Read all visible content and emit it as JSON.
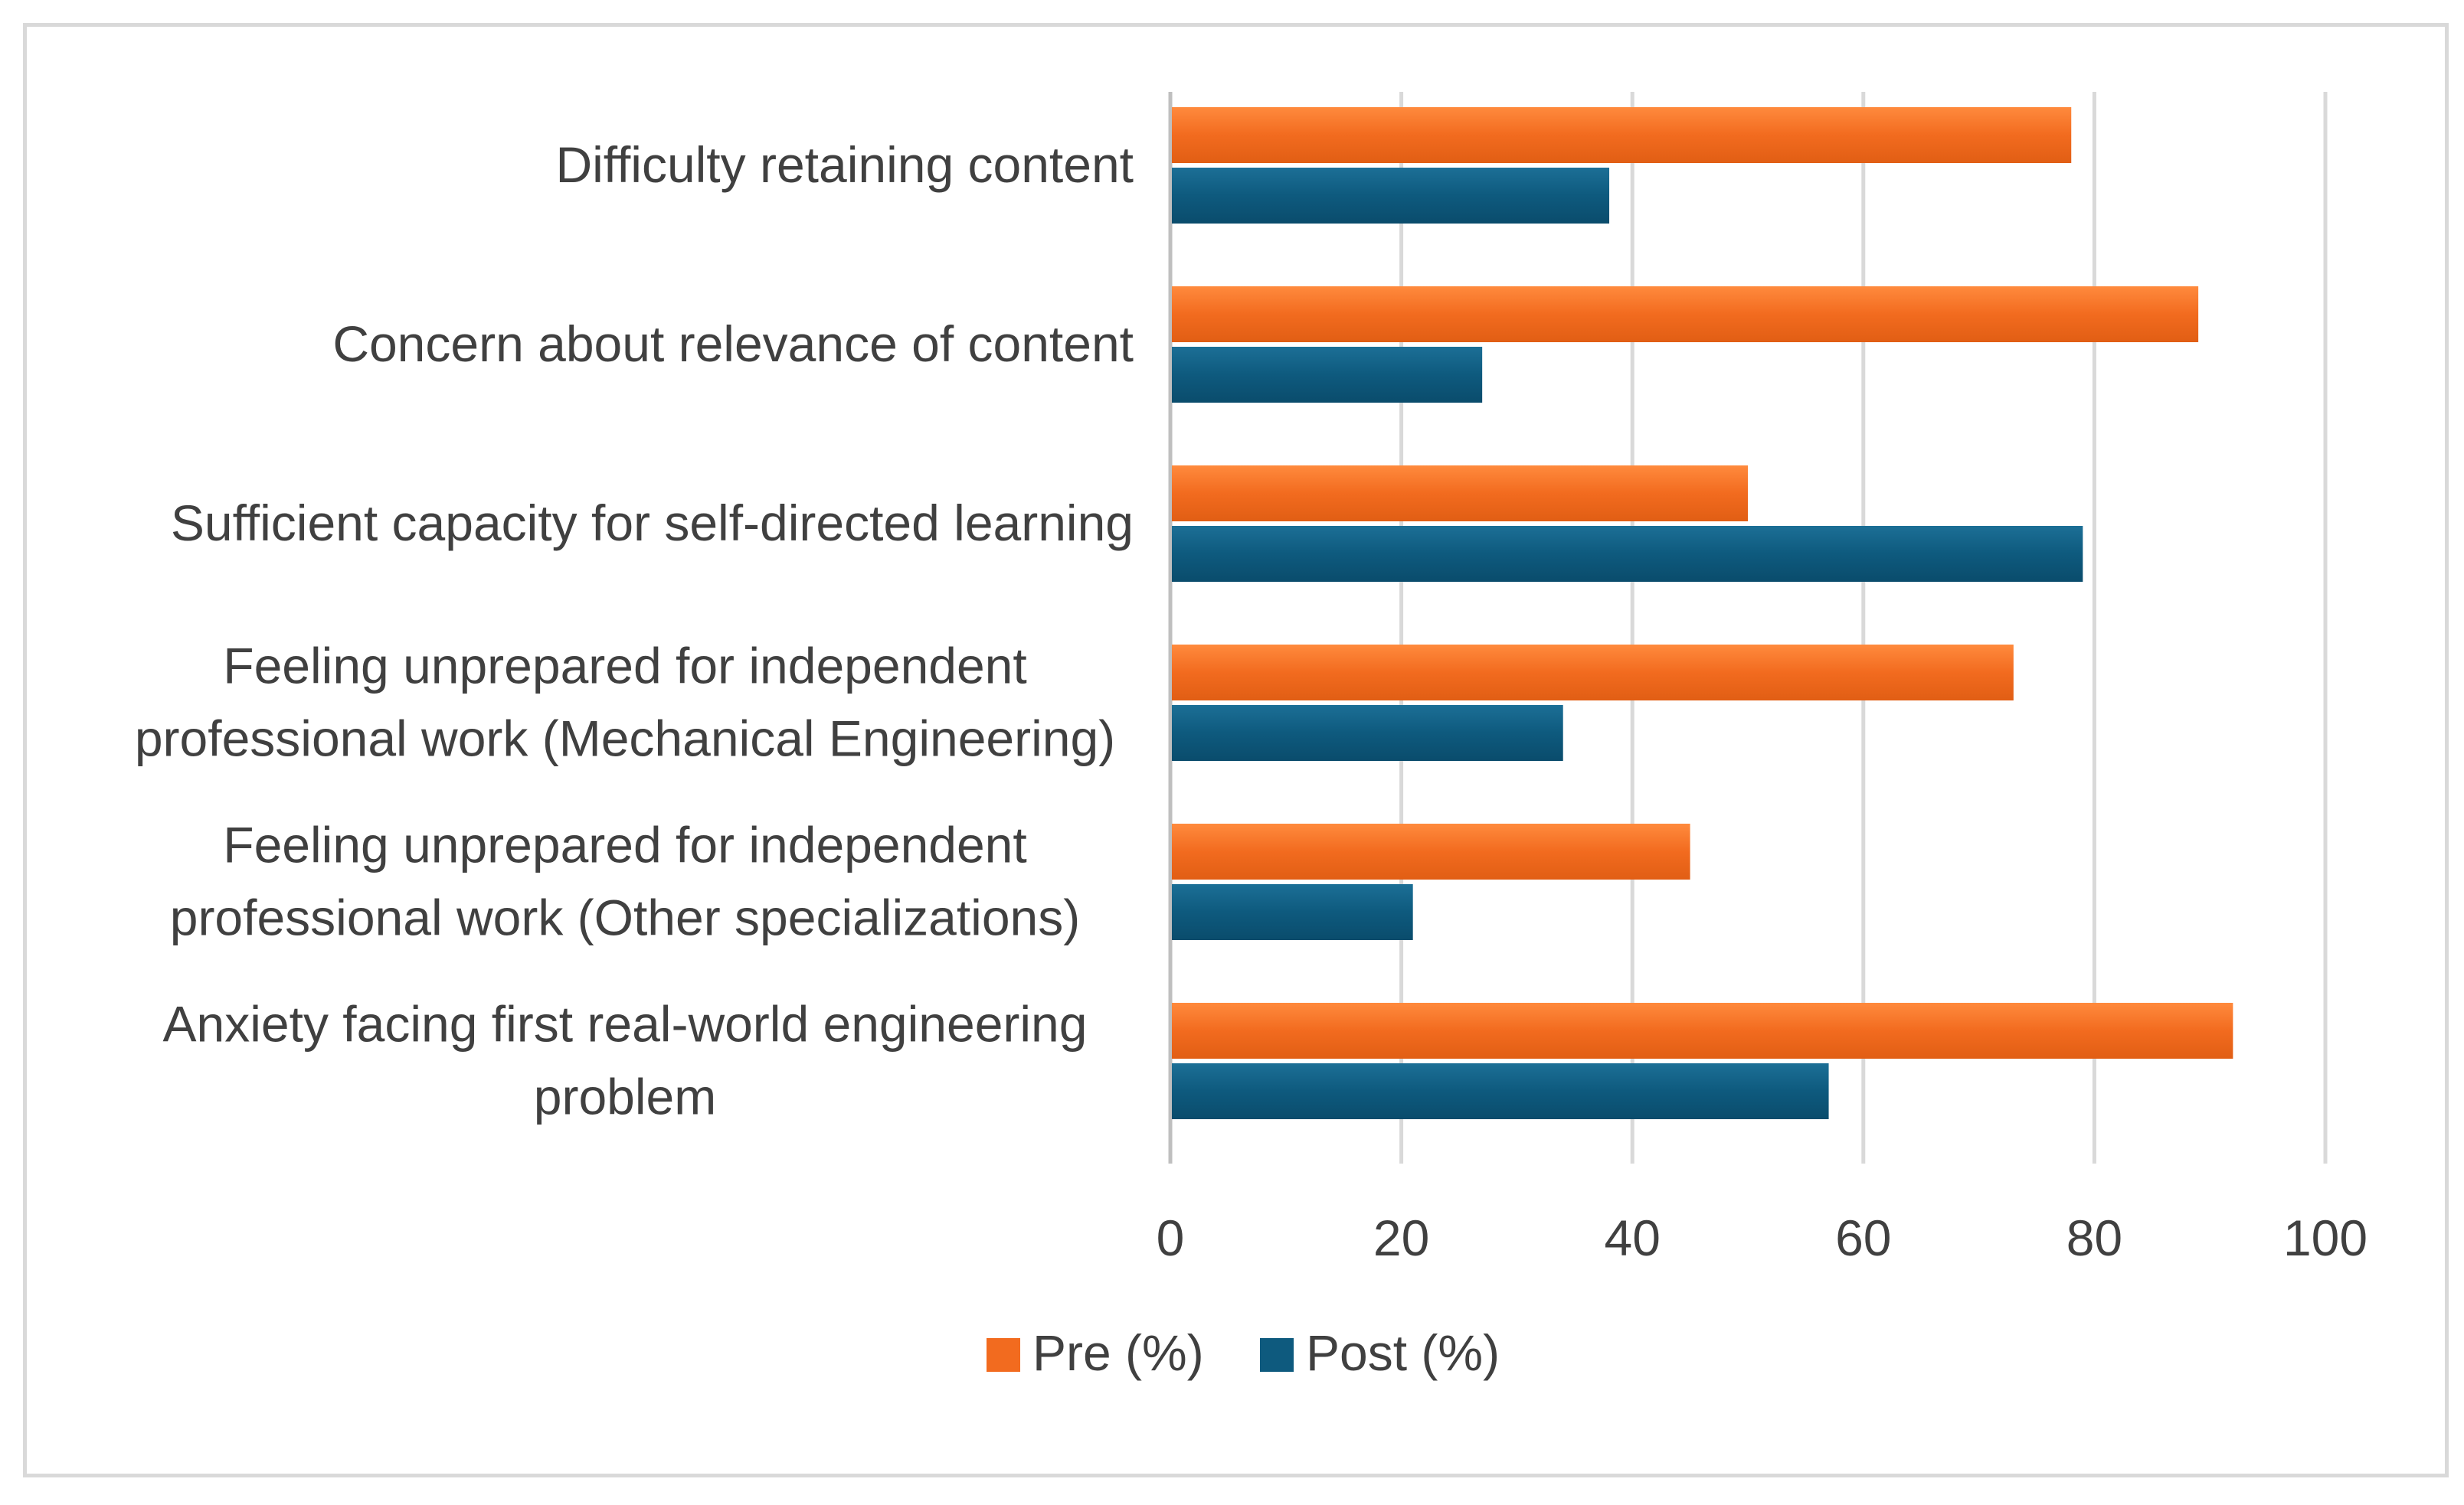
{
  "chart_data": {
    "type": "bar",
    "orientation": "horizontal",
    "title": "",
    "xlabel": "",
    "ylabel": "",
    "xlim": [
      0,
      100
    ],
    "x_ticks": [
      0,
      20,
      40,
      60,
      80,
      100
    ],
    "grid": true,
    "legend_position": "bottom",
    "categories": [
      [
        "Difficulty retaining content"
      ],
      [
        "Concern about relevance of content"
      ],
      [
        "Sufficient capacity for self-directed learning"
      ],
      [
        "Feeling unprepared for independent",
        "professional work (Mechanical Engineering)"
      ],
      [
        "Feeling unprepared for independent",
        "professional work (Other specializations)"
      ],
      [
        "Anxiety facing first real-world engineering",
        "problem"
      ]
    ],
    "series": [
      {
        "name": "Pre (%)",
        "color": "#F26B1F",
        "values": [
          78,
          89,
          50,
          73,
          45,
          92
        ]
      },
      {
        "name": "Post (%)",
        "color": "#0E5A7E",
        "values": [
          38,
          27,
          79,
          34,
          21,
          57
        ]
      }
    ]
  }
}
